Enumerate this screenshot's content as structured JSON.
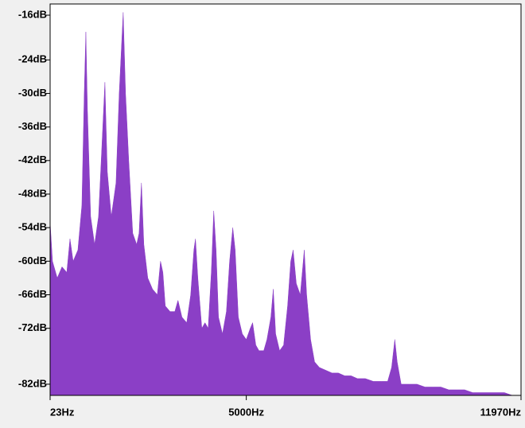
{
  "chart_data": {
    "type": "area",
    "color": "#8b3fc6",
    "xlim": [
      23,
      11970
    ],
    "ylim": [
      -14,
      -84
    ],
    "xticks": [
      {
        "value": 23,
        "label": "23Hz"
      },
      {
        "value": 5000,
        "label": "5000Hz"
      },
      {
        "value": 11970,
        "label": "11970Hz"
      }
    ],
    "yticks": [
      {
        "value": -16,
        "label": "-16dB"
      },
      {
        "value": -24,
        "label": "-24dB"
      },
      {
        "value": -30,
        "label": "-30dB"
      },
      {
        "value": -36,
        "label": "-36dB"
      },
      {
        "value": -42,
        "label": "-42dB"
      },
      {
        "value": -48,
        "label": "-48dB"
      },
      {
        "value": -54,
        "label": "-54dB"
      },
      {
        "value": -60,
        "label": "-60dB"
      },
      {
        "value": -66,
        "label": "-66dB"
      },
      {
        "value": -72,
        "label": "-72dB"
      },
      {
        "value": -82,
        "label": "-82dB"
      }
    ],
    "x": [
      23,
      83,
      204,
      325,
      446,
      527,
      607,
      728,
      829,
      889,
      930,
      970,
      1051,
      1151,
      1252,
      1333,
      1413,
      1474,
      1575,
      1695,
      1776,
      1877,
      1937,
      2018,
      2119,
      2219,
      2280,
      2340,
      2401,
      2501,
      2622,
      2743,
      2824,
      2884,
      2945,
      3066,
      3187,
      3267,
      3368,
      3489,
      3590,
      3670,
      3711,
      3771,
      3872,
      3952,
      4033,
      4113,
      4174,
      4234,
      4295,
      4396,
      4496,
      4577,
      4657,
      4718,
      4798,
      4899,
      5000,
      5101,
      5161,
      5242,
      5322,
      5443,
      5524,
      5624,
      5685,
      5745,
      5846,
      5947,
      6048,
      6128,
      6189,
      6269,
      6370,
      6471,
      6531,
      6632,
      6733,
      6854,
      7015,
      7176,
      7337,
      7498,
      7660,
      7821,
      8022,
      8224,
      8425,
      8586,
      8687,
      8768,
      8828,
      8929,
      9131,
      9332,
      9533,
      9735,
      9936,
      10138,
      10339,
      10540,
      10742,
      10943,
      11145,
      11346,
      11548,
      11749,
      11950
    ],
    "values": [
      -53,
      -60,
      -63,
      -61,
      -62,
      -56,
      -60,
      -58,
      -50,
      -30,
      -19,
      -33,
      -52,
      -57,
      -52,
      -40,
      -28,
      -44,
      -52,
      -46,
      -30,
      -15.5,
      -30,
      -42,
      -55,
      -57,
      -55,
      -46,
      -57,
      -63,
      -65,
      -66,
      -60,
      -62,
      -68,
      -69,
      -69,
      -67,
      -70,
      -71,
      -66,
      -58,
      -56,
      -63,
      -72,
      -71,
      -72,
      -62,
      -51,
      -58,
      -70,
      -73,
      -69,
      -60,
      -54,
      -58,
      -70,
      -73,
      -74,
      -72,
      -71,
      -75,
      -76,
      -76,
      -74,
      -70,
      -65,
      -73,
      -76,
      -75,
      -68,
      -60,
      -58,
      -64,
      -66,
      -58,
      -66,
      -74,
      -78,
      -79,
      -79.5,
      -80,
      -80,
      -80.5,
      -80.5,
      -81,
      -81,
      -81.5,
      -81.5,
      -81.5,
      -79,
      -74,
      -78,
      -82,
      -82,
      -82,
      -82.5,
      -82.5,
      -82.5,
      -83,
      -83,
      -83,
      -83.5,
      -83.5,
      -83.5,
      -83.5,
      -83.5,
      -84,
      -84
    ]
  }
}
